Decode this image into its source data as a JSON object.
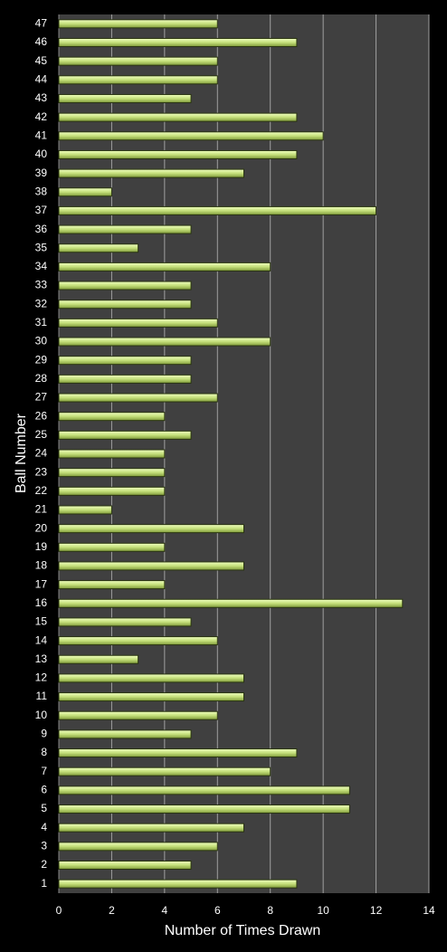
{
  "chart_data": {
    "type": "bar",
    "orientation": "horizontal",
    "x_label": "Number of Times Drawn",
    "y_label": "Ball Number",
    "categories": [
      "1",
      "2",
      "3",
      "4",
      "5",
      "6",
      "7",
      "8",
      "9",
      "10",
      "11",
      "12",
      "13",
      "14",
      "15",
      "16",
      "17",
      "18",
      "19",
      "20",
      "21",
      "22",
      "23",
      "24",
      "25",
      "26",
      "27",
      "28",
      "29",
      "30",
      "31",
      "32",
      "33",
      "34",
      "35",
      "36",
      "37",
      "38",
      "39",
      "40",
      "41",
      "42",
      "43",
      "44",
      "45",
      "46",
      "47"
    ],
    "values": [
      9,
      5,
      6,
      7,
      11,
      11,
      8,
      9,
      5,
      6,
      7,
      7,
      3,
      6,
      5,
      13,
      4,
      7,
      4,
      7,
      2,
      4,
      4,
      4,
      5,
      4,
      6,
      5,
      5,
      8,
      6,
      5,
      5,
      8,
      3,
      5,
      12,
      2,
      7,
      9,
      10,
      9,
      5,
      6,
      6,
      9,
      6
    ],
    "color": "#c4df7a",
    "xlim": [
      0,
      14
    ],
    "xticks": [
      0,
      2,
      4,
      6,
      8,
      10,
      12,
      14
    ],
    "grid": true
  }
}
